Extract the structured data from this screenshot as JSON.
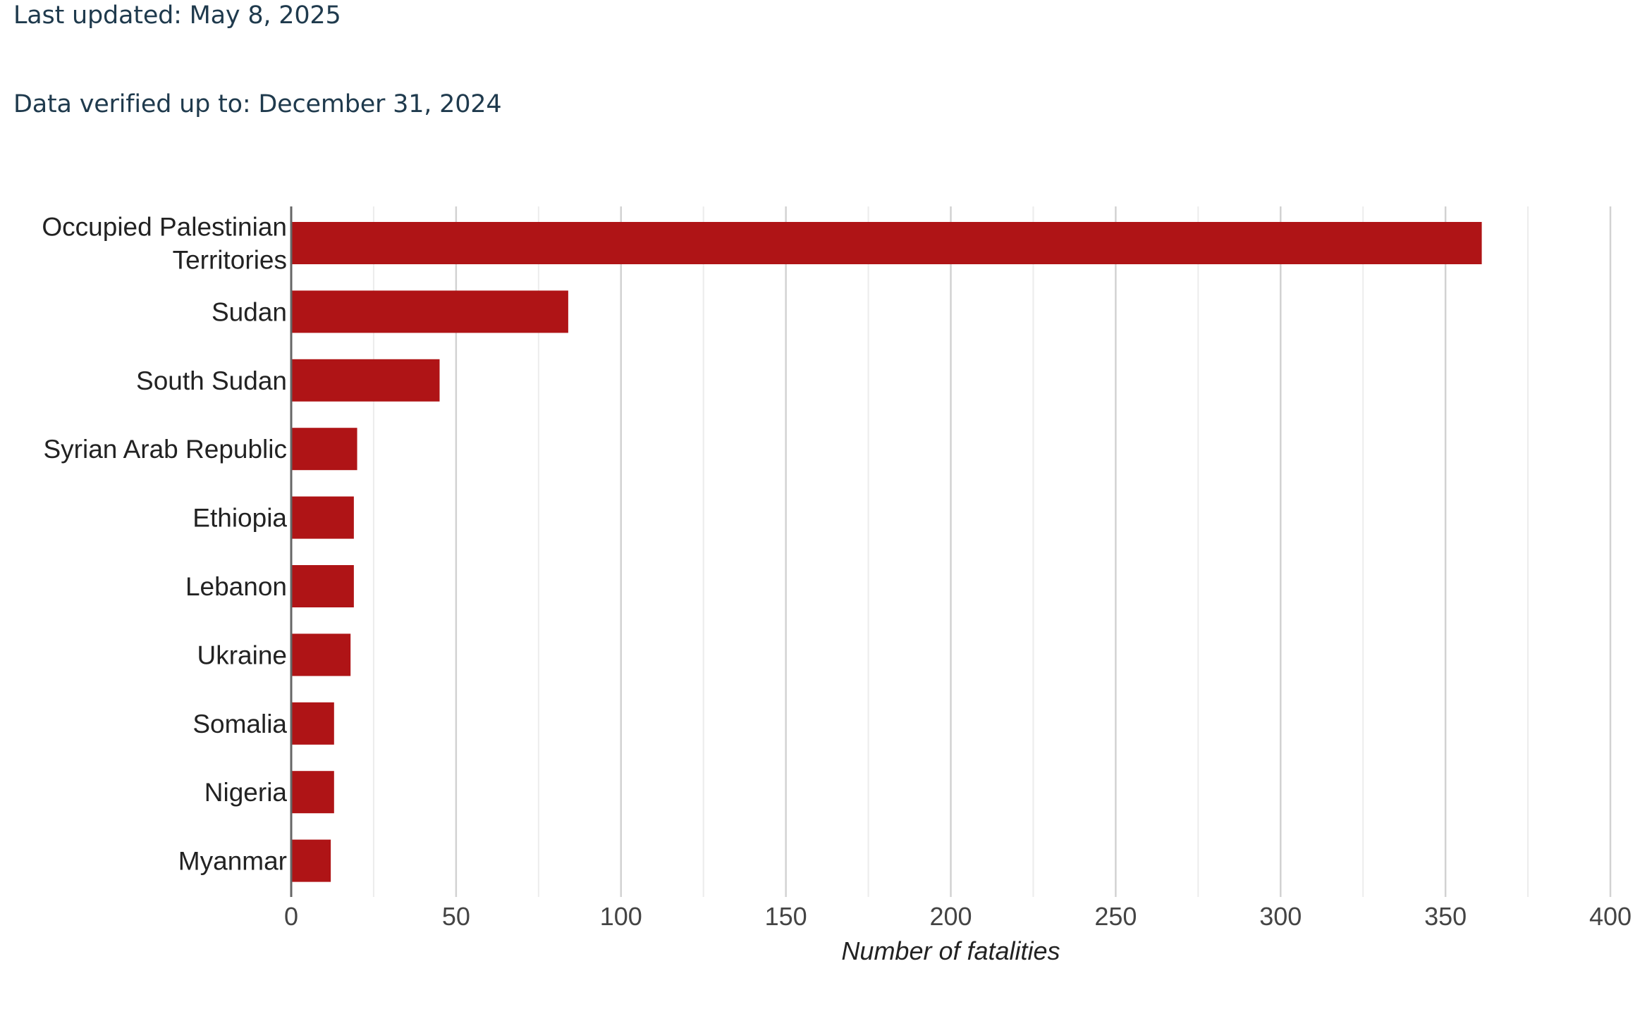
{
  "meta": {
    "last_updated": "Last updated: May 8, 2025",
    "data_verified": "Data verified up to: December 31, 2024"
  },
  "chart_data": {
    "type": "bar",
    "orientation": "horizontal",
    "categories": [
      [
        "Occupied Palestinian",
        "Territories"
      ],
      [
        "Sudan"
      ],
      [
        "South Sudan"
      ],
      [
        "Syrian Arab Republic"
      ],
      [
        "Ethiopia"
      ],
      [
        "Lebanon"
      ],
      [
        "Ukraine"
      ],
      [
        "Somalia"
      ],
      [
        "Nigeria"
      ],
      [
        "Myanmar"
      ]
    ],
    "values": [
      361,
      84,
      45,
      20,
      19,
      19,
      18,
      13,
      13,
      12
    ],
    "xlabel": "Number of fatalities",
    "ylabel": "",
    "xlim": [
      0,
      400
    ],
    "xticks": [
      0,
      50,
      100,
      150,
      200,
      250,
      300,
      350,
      400
    ],
    "grid": true,
    "bar_color": "#af1416",
    "grid_color": "#dddddd",
    "axis_color": "#666666",
    "text_color": "#222222"
  }
}
